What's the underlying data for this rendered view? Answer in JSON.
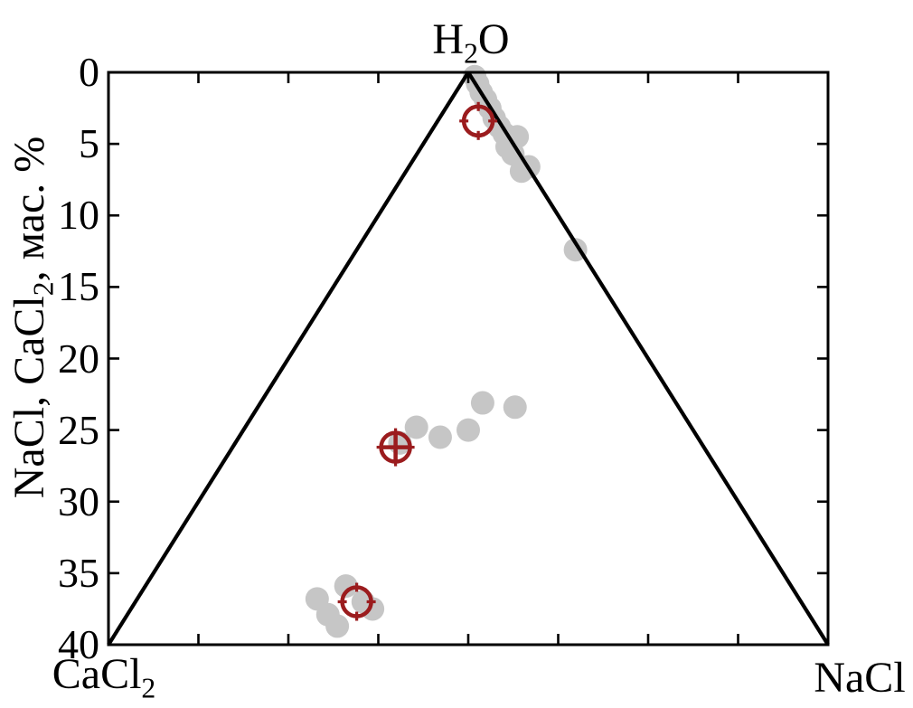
{
  "figure": {
    "background": "#ffffff",
    "labels": {
      "top_vertex": {
        "segments": [
          {
            "text": "H"
          },
          {
            "text": "2",
            "sub": true
          },
          {
            "text": "O"
          }
        ]
      },
      "bottom_left_vertex": {
        "segments": [
          {
            "text": "CaCl"
          },
          {
            "text": "2",
            "sub": true
          }
        ]
      },
      "bottom_right_vertex": {
        "segments": [
          {
            "text": "NaCl"
          }
        ]
      },
      "y_axis_title": {
        "segments": [
          {
            "text": "NaCl, CaCl"
          },
          {
            "text": "2",
            "sub": true
          },
          {
            "text": ", мас. %"
          }
        ]
      }
    }
  },
  "chart_data": {
    "type": "scatter",
    "title": "",
    "ylabel": "NaCl, CaCl2, мас. %",
    "xlabel": "",
    "corner_labels": {
      "top": "H2O",
      "bottom_left": "CaCl2",
      "bottom_right": "NaCl"
    },
    "y_axis": {
      "min": 0,
      "max": 40,
      "tick_step": 5,
      "tick_labels": [
        "0",
        "5",
        "10",
        "15",
        "20",
        "25",
        "30",
        "35",
        "40"
      ],
      "direction": "increasing downward, mass percent of total salts"
    },
    "x_axis": {
      "units": "fraction of axis width, 0 = CaCl2 corner, 1 = NaCl corner",
      "interior_unlabeled_ticks": 7
    },
    "grid": false,
    "legend": false,
    "frame": "full box with inward ticks on all four sides",
    "triangle": {
      "apex": {
        "x": 0.5,
        "y": 0
      },
      "bottom_left": {
        "x": 0.0,
        "y": 40
      },
      "bottom_right": {
        "x": 1.0,
        "y": 40
      }
    },
    "colors": {
      "data_gray": "#c6c6c6",
      "highlight_red": "#9b1c1e",
      "axis_black": "#000000"
    },
    "series": [
      {
        "name": "experimental-points",
        "marker": "filled-circle",
        "color_key": "data_gray",
        "radius_px": 13,
        "points": [
          [
            0.509,
            0.3
          ],
          [
            0.513,
            0.8
          ],
          [
            0.518,
            1.4
          ],
          [
            0.524,
            1.9
          ],
          [
            0.53,
            2.5
          ],
          [
            0.536,
            3.2
          ],
          [
            0.543,
            3.8
          ],
          [
            0.55,
            4.3
          ],
          [
            0.568,
            4.5
          ],
          [
            0.554,
            5.2
          ],
          [
            0.562,
            5.7
          ],
          [
            0.584,
            6.6
          ],
          [
            0.574,
            6.9
          ],
          [
            0.649,
            12.4
          ],
          [
            0.405,
            25.9
          ],
          [
            0.428,
            24.8
          ],
          [
            0.461,
            25.5
          ],
          [
            0.5,
            25.0
          ],
          [
            0.52,
            23.1
          ],
          [
            0.565,
            23.4
          ],
          [
            0.29,
            36.8
          ],
          [
            0.305,
            37.9
          ],
          [
            0.318,
            38.7
          ],
          [
            0.33,
            35.9
          ],
          [
            0.354,
            37.0
          ],
          [
            0.367,
            37.5
          ]
        ]
      },
      {
        "name": "highlight-open-circles",
        "marker": "open-circle-ticked",
        "color_key": "highlight_red",
        "radius_px": 16,
        "points": [
          [
            0.514,
            3.4
          ],
          [
            0.345,
            37.0
          ]
        ]
      },
      {
        "name": "highlight-crossed-circle",
        "marker": "open-circle-crosshair",
        "color_key": "highlight_red",
        "radius_px": 16,
        "points": [
          [
            0.399,
            26.2
          ]
        ]
      }
    ]
  }
}
